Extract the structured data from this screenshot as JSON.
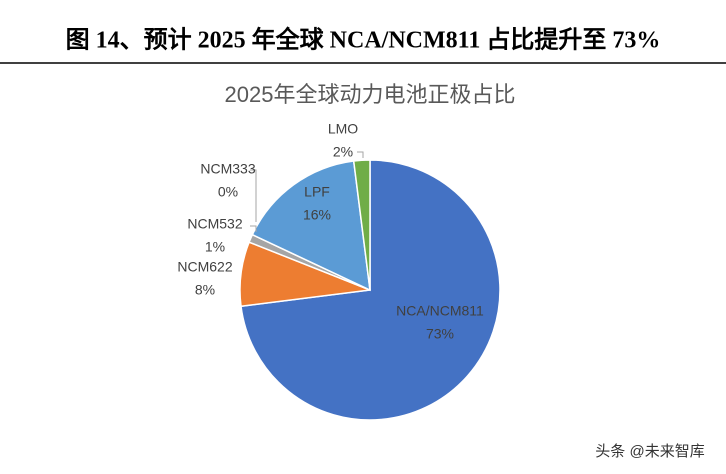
{
  "header": {
    "title": "图 14、预计 2025 年全球 NCA/NCM811 占比提升至 73%"
  },
  "chart_data": {
    "type": "pie",
    "title": "2025年全球动力电池正极占比",
    "categories": [
      "NCA/NCM811",
      "NCM622",
      "NCM532",
      "NCM333",
      "LPF",
      "LMO"
    ],
    "values": [
      73,
      8,
      1,
      0,
      16,
      2
    ],
    "value_labels": [
      "73%",
      "8%",
      "1%",
      "0%",
      "16%",
      "2%"
    ],
    "colors": [
      "#4472c4",
      "#ed7d31",
      "#a5a5a5",
      "#ffc000",
      "#5b9bd5",
      "#70ad47"
    ]
  },
  "watermark": "头条 @未来智库"
}
